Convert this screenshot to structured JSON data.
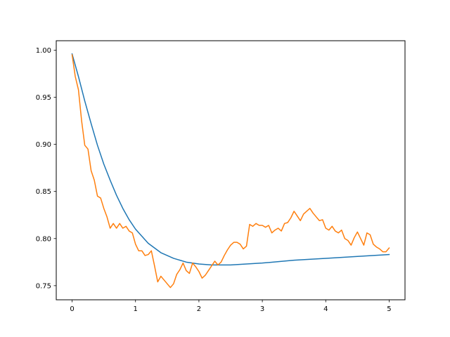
{
  "chart_data": {
    "type": "line",
    "title": "",
    "xlabel": "",
    "ylabel": "",
    "xlim": [
      -0.25,
      5.25
    ],
    "ylim": [
      0.735,
      1.01
    ],
    "grid": false,
    "x_ticks": [
      0,
      1,
      2,
      3,
      4,
      5
    ],
    "x_tick_labels": [
      "0",
      "1",
      "2",
      "3",
      "4",
      "5"
    ],
    "y_ticks": [
      0.75,
      0.8,
      0.85,
      0.9,
      0.95,
      1.0
    ],
    "y_tick_labels": [
      "0.75",
      "0.80",
      "0.85",
      "0.90",
      "0.95",
      "1.00"
    ],
    "series": [
      {
        "color": "#1f77b4",
        "x": [
          0.0,
          0.1,
          0.2,
          0.3,
          0.4,
          0.5,
          0.6,
          0.7,
          0.8,
          0.9,
          1.0,
          1.2,
          1.4,
          1.6,
          1.8,
          2.0,
          2.2,
          2.5,
          3.0,
          3.5,
          4.0,
          4.5,
          5.0
        ],
        "y": [
          0.996,
          0.972,
          0.946,
          0.922,
          0.899,
          0.879,
          0.862,
          0.846,
          0.832,
          0.82,
          0.81,
          0.795,
          0.785,
          0.779,
          0.775,
          0.773,
          0.772,
          0.772,
          0.774,
          0.777,
          0.779,
          0.781,
          0.783
        ]
      },
      {
        "color": "#ff7f0e",
        "x": [
          0.0,
          0.05,
          0.1,
          0.15,
          0.2,
          0.25,
          0.3,
          0.35,
          0.4,
          0.45,
          0.5,
          0.55,
          0.6,
          0.65,
          0.7,
          0.75,
          0.8,
          0.85,
          0.9,
          0.95,
          1.0,
          1.05,
          1.1,
          1.15,
          1.2,
          1.25,
          1.3,
          1.35,
          1.4,
          1.45,
          1.5,
          1.55,
          1.6,
          1.65,
          1.7,
          1.75,
          1.8,
          1.85,
          1.9,
          1.95,
          2.0,
          2.05,
          2.1,
          2.15,
          2.2,
          2.25,
          2.3,
          2.35,
          2.4,
          2.45,
          2.5,
          2.55,
          2.6,
          2.65,
          2.7,
          2.75,
          2.8,
          2.85,
          2.9,
          2.95,
          3.0,
          3.05,
          3.1,
          3.15,
          3.2,
          3.25,
          3.3,
          3.35,
          3.4,
          3.45,
          3.5,
          3.55,
          3.6,
          3.65,
          3.7,
          3.75,
          3.8,
          3.85,
          3.9,
          3.95,
          4.0,
          4.05,
          4.1,
          4.15,
          4.2,
          4.25,
          4.3,
          4.35,
          4.4,
          4.45,
          4.5,
          4.55,
          4.6,
          4.65,
          4.7,
          4.75,
          4.8,
          4.85,
          4.9,
          4.95,
          5.0
        ],
        "y": [
          0.995,
          0.972,
          0.958,
          0.925,
          0.899,
          0.895,
          0.872,
          0.862,
          0.845,
          0.843,
          0.832,
          0.823,
          0.811,
          0.816,
          0.811,
          0.816,
          0.811,
          0.813,
          0.808,
          0.806,
          0.794,
          0.787,
          0.787,
          0.782,
          0.783,
          0.787,
          0.771,
          0.754,
          0.76,
          0.756,
          0.752,
          0.748,
          0.752,
          0.762,
          0.767,
          0.774,
          0.766,
          0.763,
          0.774,
          0.77,
          0.765,
          0.758,
          0.761,
          0.766,
          0.771,
          0.776,
          0.772,
          0.775,
          0.782,
          0.788,
          0.793,
          0.796,
          0.796,
          0.794,
          0.789,
          0.792,
          0.815,
          0.813,
          0.816,
          0.814,
          0.814,
          0.812,
          0.814,
          0.806,
          0.809,
          0.811,
          0.808,
          0.816,
          0.817,
          0.822,
          0.829,
          0.824,
          0.819,
          0.826,
          0.829,
          0.832,
          0.827,
          0.823,
          0.819,
          0.82,
          0.811,
          0.809,
          0.813,
          0.808,
          0.806,
          0.809,
          0.8,
          0.798,
          0.793,
          0.801,
          0.807,
          0.8,
          0.793,
          0.806,
          0.804,
          0.794,
          0.791,
          0.789,
          0.786,
          0.786,
          0.79
        ]
      }
    ]
  }
}
